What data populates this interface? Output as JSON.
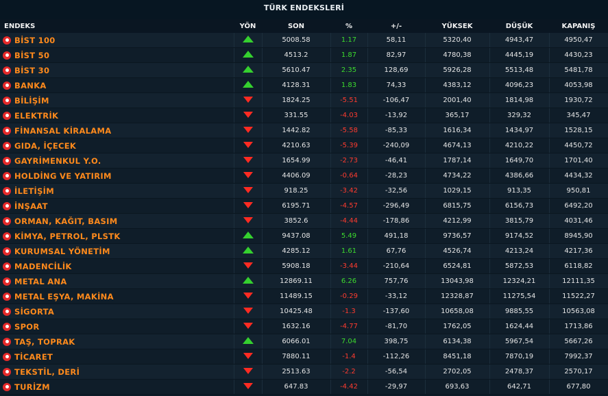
{
  "title": "TÜRK ENDEKSLERİ",
  "columns": [
    "ENDEKS",
    "YÖN",
    "SON",
    "%",
    "+/-",
    "YÜKSEK",
    "DÜŞÜK",
    "KAPANIŞ"
  ],
  "rows": [
    {
      "name": "BİST 100",
      "dir": "up",
      "son": "5008.58",
      "pct": "1.17",
      "chg": "58,11",
      "high": "5320,40",
      "low": "4943,47",
      "close": "4950,47"
    },
    {
      "name": "BİST 50",
      "dir": "up",
      "son": "4513.2",
      "pct": "1.87",
      "chg": "82,97",
      "high": "4780,38",
      "low": "4445,19",
      "close": "4430,23"
    },
    {
      "name": "BİST 30",
      "dir": "up",
      "son": "5610.47",
      "pct": "2.35",
      "chg": "128,69",
      "high": "5926,28",
      "low": "5513,48",
      "close": "5481,78"
    },
    {
      "name": "BANKA",
      "dir": "up",
      "son": "4128.31",
      "pct": "1.83",
      "chg": "74,33",
      "high": "4383,12",
      "low": "4096,23",
      "close": "4053,98"
    },
    {
      "name": "BİLİŞİM",
      "dir": "down",
      "son": "1824.25",
      "pct": "-5.51",
      "chg": "-106,47",
      "high": "2001,40",
      "low": "1814,98",
      "close": "1930,72"
    },
    {
      "name": "ELEKTRİK",
      "dir": "down",
      "son": "331.55",
      "pct": "-4.03",
      "chg": "-13,92",
      "high": "365,17",
      "low": "329,32",
      "close": "345,47"
    },
    {
      "name": "FİNANSAL KİRALAMA",
      "dir": "down",
      "son": "1442.82",
      "pct": "-5.58",
      "chg": "-85,33",
      "high": "1616,34",
      "low": "1434,97",
      "close": "1528,15"
    },
    {
      "name": "GIDA, İÇECEK",
      "dir": "down",
      "son": "4210.63",
      "pct": "-5.39",
      "chg": "-240,09",
      "high": "4674,13",
      "low": "4210,22",
      "close": "4450,72"
    },
    {
      "name": "GAYRİMENKUL Y.O.",
      "dir": "down",
      "son": "1654.99",
      "pct": "-2.73",
      "chg": "-46,41",
      "high": "1787,14",
      "low": "1649,70",
      "close": "1701,40"
    },
    {
      "name": "HOLDİNG VE YATIRIM",
      "dir": "down",
      "son": "4406.09",
      "pct": "-0.64",
      "chg": "-28,23",
      "high": "4734,22",
      "low": "4386,66",
      "close": "4434,32"
    },
    {
      "name": "İLETİŞİM",
      "dir": "down",
      "son": "918.25",
      "pct": "-3.42",
      "chg": "-32,56",
      "high": "1029,15",
      "low": "913,35",
      "close": "950,81"
    },
    {
      "name": "İNŞAAT",
      "dir": "down",
      "son": "6195.71",
      "pct": "-4.57",
      "chg": "-296,49",
      "high": "6815,75",
      "low": "6156,73",
      "close": "6492,20"
    },
    {
      "name": "ORMAN, KAĞIT, BASIM",
      "dir": "down",
      "son": "3852.6",
      "pct": "-4.44",
      "chg": "-178,86",
      "high": "4212,99",
      "low": "3815,79",
      "close": "4031,46"
    },
    {
      "name": "KİMYA, PETROL, PLSTK",
      "dir": "up",
      "son": "9437.08",
      "pct": "5.49",
      "chg": "491,18",
      "high": "9736,57",
      "low": "9174,52",
      "close": "8945,90"
    },
    {
      "name": "KURUMSAL YÖNETİM",
      "dir": "up",
      "son": "4285.12",
      "pct": "1.61",
      "chg": "67,76",
      "high": "4526,74",
      "low": "4213,24",
      "close": "4217,36"
    },
    {
      "name": "MADENCİLİK",
      "dir": "down",
      "son": "5908.18",
      "pct": "-3.44",
      "chg": "-210,64",
      "high": "6524,81",
      "low": "5872,53",
      "close": "6118,82"
    },
    {
      "name": "METAL ANA",
      "dir": "up",
      "son": "12869.11",
      "pct": "6.26",
      "chg": "757,76",
      "high": "13043,98",
      "low": "12324,21",
      "close": "12111,35"
    },
    {
      "name": "METAL EŞYA, MAKİNA",
      "dir": "down",
      "son": "11489.15",
      "pct": "-0.29",
      "chg": "-33,12",
      "high": "12328,87",
      "low": "11275,54",
      "close": "11522,27"
    },
    {
      "name": "SİGORTA",
      "dir": "down",
      "son": "10425.48",
      "pct": "-1.3",
      "chg": "-137,60",
      "high": "10658,08",
      "low": "9885,55",
      "close": "10563,08"
    },
    {
      "name": "SPOR",
      "dir": "down",
      "son": "1632.16",
      "pct": "-4.77",
      "chg": "-81,70",
      "high": "1762,05",
      "low": "1624,44",
      "close": "1713,86"
    },
    {
      "name": "TAŞ, TOPRAK",
      "dir": "up",
      "son": "6066.01",
      "pct": "7.04",
      "chg": "398,75",
      "high": "6134,38",
      "low": "5967,54",
      "close": "5667,26"
    },
    {
      "name": "TİCARET",
      "dir": "down",
      "son": "7880.11",
      "pct": "-1.4",
      "chg": "-112,26",
      "high": "8451,18",
      "low": "7870,19",
      "close": "7992,37"
    },
    {
      "name": "TEKSTİL, DERİ",
      "dir": "down",
      "son": "2513.63",
      "pct": "-2.2",
      "chg": "-56,54",
      "high": "2702,05",
      "low": "2478,37",
      "close": "2570,17"
    },
    {
      "name": "TURİZM",
      "dir": "down",
      "son": "647.83",
      "pct": "-4.42",
      "chg": "-29,97",
      "high": "693,63",
      "low": "642,71",
      "close": "677,80"
    }
  ]
}
